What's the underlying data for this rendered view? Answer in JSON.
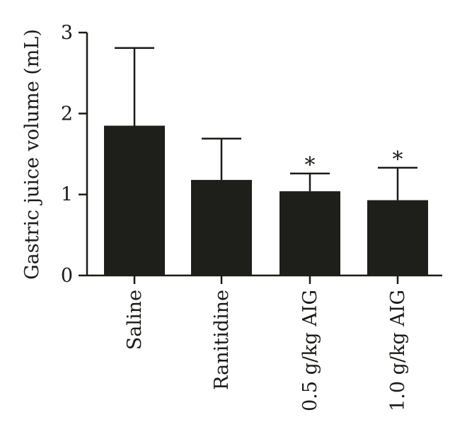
{
  "chart_data": {
    "type": "bar",
    "title": "",
    "xlabel": "",
    "ylabel": "Gastric juice volume (mL)",
    "ylim": [
      0,
      3
    ],
    "yticks": [
      0,
      1,
      2,
      3
    ],
    "grid": false,
    "legend": "none",
    "categories": [
      "Saline",
      "Ranitidine",
      "0.5 g/kg AIG",
      "1.0 g/kg AIG"
    ],
    "values": [
      1.85,
      1.18,
      1.04,
      0.93
    ],
    "error_upper": [
      0.96,
      0.51,
      0.22,
      0.4
    ],
    "annotations": [
      "",
      "",
      "*",
      "*"
    ],
    "bar_color": "#1e1e1a"
  }
}
